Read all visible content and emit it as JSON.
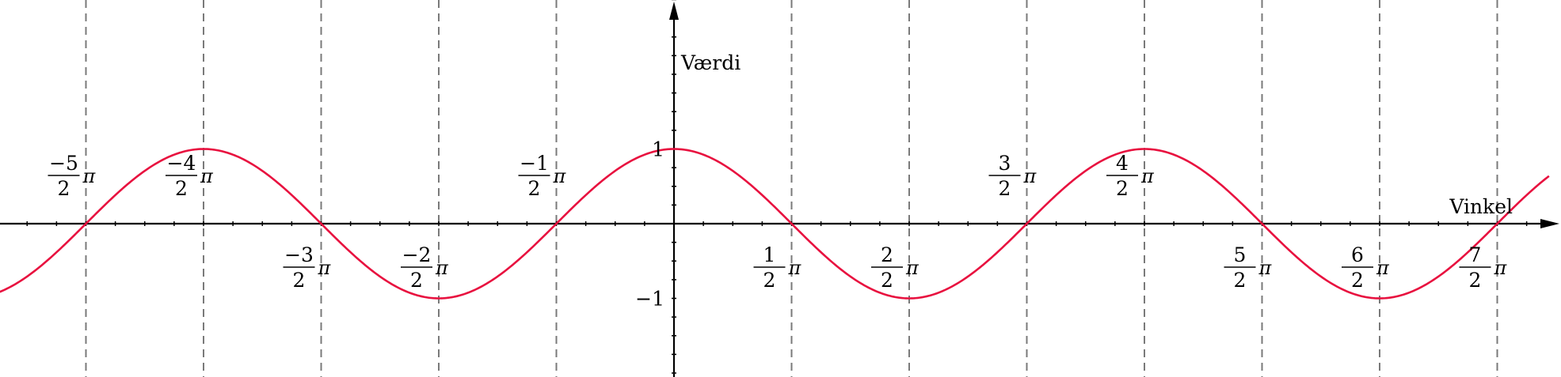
{
  "chart_data": {
    "type": "line",
    "xlabel": "Vinkel",
    "ylabel": "Værdi",
    "xlim": [
      -5.76,
      7.44
    ],
    "ylim": [
      -2.03,
      3.0
    ],
    "grid_x": [
      -5,
      -4,
      -3,
      -2,
      -1,
      1,
      2,
      3,
      4,
      5,
      6,
      7
    ],
    "y_ticks": [
      {
        "value": 1,
        "label": "1"
      },
      {
        "value": -1,
        "label": "−1"
      }
    ],
    "series": [
      {
        "function": "cos(x)",
        "color": "#e8113f",
        "x_domain": [
          -5.76,
          7.44
        ]
      }
    ],
    "annotations": [
      {
        "at": -5,
        "numerator": "−5",
        "denominator": "2",
        "symbol": "π",
        "side": "above"
      },
      {
        "at": -4,
        "numerator": "−4",
        "denominator": "2",
        "symbol": "π",
        "side": "above"
      },
      {
        "at": -3,
        "numerator": "−3",
        "denominator": "2",
        "symbol": "π",
        "side": "below"
      },
      {
        "at": -2,
        "numerator": "−2",
        "denominator": "2",
        "symbol": "π",
        "side": "below"
      },
      {
        "at": -1,
        "numerator": "−1",
        "denominator": "2",
        "symbol": "π",
        "side": "above"
      },
      {
        "at": 1,
        "numerator": "1",
        "denominator": "2",
        "symbol": "π",
        "side": "below"
      },
      {
        "at": 2,
        "numerator": "2",
        "denominator": "2",
        "symbol": "π",
        "side": "below"
      },
      {
        "at": 3,
        "numerator": "3",
        "denominator": "2",
        "symbol": "π",
        "side": "above"
      },
      {
        "at": 4,
        "numerator": "4",
        "denominator": "2",
        "symbol": "π",
        "side": "above"
      },
      {
        "at": 5,
        "numerator": "5",
        "denominator": "2",
        "symbol": "π",
        "side": "below"
      },
      {
        "at": 6,
        "numerator": "6",
        "denominator": "2",
        "symbol": "π",
        "side": "below"
      },
      {
        "at": 7,
        "numerator": "7",
        "denominator": "2",
        "symbol": "π",
        "side": "below"
      }
    ]
  }
}
